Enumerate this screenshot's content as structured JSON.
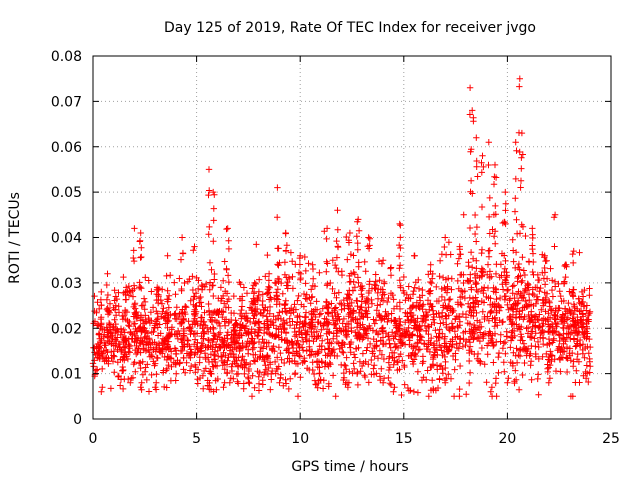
{
  "chart_data": {
    "type": "scatter",
    "title": "Day 125 of 2019, Rate Of TEC Index for receiver jvgo",
    "xlabel": "GPS time / hours",
    "ylabel": "ROTI / TECUs",
    "xlim": [
      0,
      25
    ],
    "ylim": [
      0,
      0.08
    ],
    "xticks": [
      0,
      5,
      10,
      15,
      20,
      25
    ],
    "yticks": [
      0,
      0.01,
      0.02,
      0.03,
      0.04,
      0.05,
      0.06,
      0.07,
      0.08
    ],
    "ytick_labels": [
      "0",
      "0.01",
      "0.02",
      "0.03",
      "0.04",
      "0.05",
      "0.06",
      "0.07",
      "0.08"
    ],
    "xtick_labels": [
      "0",
      "5",
      "10",
      "15",
      "20",
      "25"
    ],
    "grid": true,
    "marker": "+",
    "color": "#ff0000",
    "x_data_range": [
      0,
      24
    ],
    "envelope": {
      "x": [
        0,
        1,
        2,
        3,
        4,
        5,
        6,
        7,
        8,
        9,
        10,
        11,
        12,
        13,
        14,
        15,
        16,
        17,
        18,
        19,
        20,
        21,
        22,
        23,
        24
      ],
      "base": [
        0.016,
        0.017,
        0.018,
        0.017,
        0.018,
        0.019,
        0.018,
        0.017,
        0.018,
        0.019,
        0.018,
        0.018,
        0.02,
        0.021,
        0.019,
        0.018,
        0.019,
        0.019,
        0.02,
        0.023,
        0.022,
        0.021,
        0.02,
        0.019,
        0.018
      ],
      "spread": [
        0.007,
        0.008,
        0.009,
        0.008,
        0.009,
        0.01,
        0.009,
        0.008,
        0.009,
        0.01,
        0.009,
        0.01,
        0.011,
        0.012,
        0.01,
        0.01,
        0.01,
        0.01,
        0.012,
        0.014,
        0.013,
        0.012,
        0.011,
        0.01,
        0.008
      ]
    },
    "peaks": [
      {
        "x": 0.4,
        "y": 0.028
      },
      {
        "x": 0.7,
        "y": 0.032
      },
      {
        "x": 1.1,
        "y": 0.027
      },
      {
        "x": 1.6,
        "y": 0.029
      },
      {
        "x": 2.0,
        "y": 0.042
      },
      {
        "x": 2.3,
        "y": 0.041
      },
      {
        "x": 3.1,
        "y": 0.029
      },
      {
        "x": 3.6,
        "y": 0.036
      },
      {
        "x": 4.3,
        "y": 0.04
      },
      {
        "x": 4.9,
        "y": 0.038
      },
      {
        "x": 5.6,
        "y": 0.055
      },
      {
        "x": 5.8,
        "y": 0.05
      },
      {
        "x": 6.5,
        "y": 0.042
      },
      {
        "x": 7.2,
        "y": 0.027
      },
      {
        "x": 7.8,
        "y": 0.03
      },
      {
        "x": 8.5,
        "y": 0.032
      },
      {
        "x": 8.9,
        "y": 0.051
      },
      {
        "x": 9.3,
        "y": 0.041
      },
      {
        "x": 10.0,
        "y": 0.036
      },
      {
        "x": 10.6,
        "y": 0.034
      },
      {
        "x": 11.3,
        "y": 0.042
      },
      {
        "x": 11.8,
        "y": 0.046
      },
      {
        "x": 12.4,
        "y": 0.041
      },
      {
        "x": 12.8,
        "y": 0.044
      },
      {
        "x": 13.3,
        "y": 0.04
      },
      {
        "x": 14.0,
        "y": 0.035
      },
      {
        "x": 14.8,
        "y": 0.043
      },
      {
        "x": 15.5,
        "y": 0.036
      },
      {
        "x": 16.3,
        "y": 0.034
      },
      {
        "x": 17.0,
        "y": 0.04
      },
      {
        "x": 17.7,
        "y": 0.038
      },
      {
        "x": 18.2,
        "y": 0.073
      },
      {
        "x": 18.3,
        "y": 0.068
      },
      {
        "x": 18.5,
        "y": 0.062
      },
      {
        "x": 18.8,
        "y": 0.058
      },
      {
        "x": 19.1,
        "y": 0.061
      },
      {
        "x": 19.4,
        "y": 0.056
      },
      {
        "x": 19.9,
        "y": 0.05
      },
      {
        "x": 20.4,
        "y": 0.061
      },
      {
        "x": 20.6,
        "y": 0.075
      },
      {
        "x": 20.7,
        "y": 0.063
      },
      {
        "x": 21.2,
        "y": 0.042
      },
      {
        "x": 21.8,
        "y": 0.036
      },
      {
        "x": 22.3,
        "y": 0.045
      },
      {
        "x": 22.8,
        "y": 0.034
      },
      {
        "x": 23.2,
        "y": 0.037
      },
      {
        "x": 23.6,
        "y": 0.028
      }
    ],
    "lows": [
      {
        "x": 0.4,
        "y": 0.006
      },
      {
        "x": 1.8,
        "y": 0.008
      },
      {
        "x": 2.3,
        "y": 0.007
      },
      {
        "x": 3.0,
        "y": 0.007
      },
      {
        "x": 6.3,
        "y": 0.007
      },
      {
        "x": 6.6,
        "y": 0.008
      },
      {
        "x": 9.0,
        "y": 0.008
      },
      {
        "x": 12.3,
        "y": 0.007
      },
      {
        "x": 14.0,
        "y": 0.008
      },
      {
        "x": 14.5,
        "y": 0.006
      },
      {
        "x": 17.0,
        "y": 0.008
      },
      {
        "x": 19.2,
        "y": 0.006
      },
      {
        "x": 20.0,
        "y": 0.008
      },
      {
        "x": 22.0,
        "y": 0.008
      },
      {
        "x": 23.8,
        "y": 0.009
      }
    ]
  }
}
